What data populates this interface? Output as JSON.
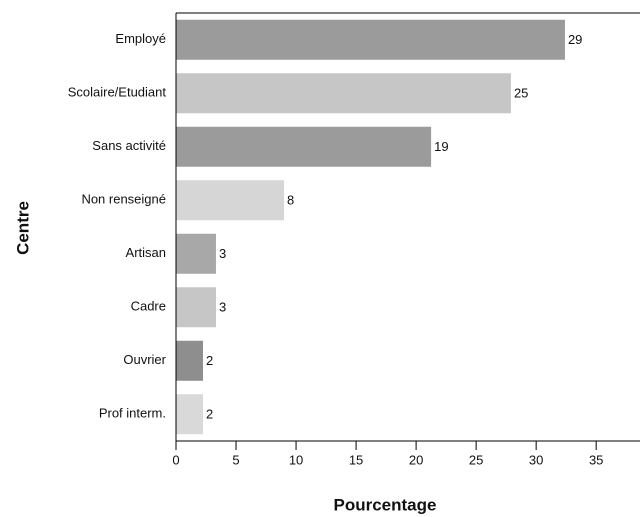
{
  "chart_data": {
    "type": "hbar",
    "y_label": "Centre",
    "x_label": "Pourcentage",
    "categories": [
      "Employé",
      "Scolaire/Etudiant",
      "Sans activité",
      "Non renseigné",
      "Artisan",
      "Cadre",
      "Ouvrier",
      "Prof interm."
    ],
    "values": [
      32.4,
      27.9,
      21.25,
      9.0,
      3.33,
      3.33,
      2.25,
      2.25
    ],
    "data_labels": [
      29,
      25,
      19,
      8,
      3,
      3,
      2,
      2
    ],
    "colors": [
      "#9b9b9b",
      "#c6c6c6",
      "#9b9b9b",
      "#d6d6d6",
      "#a8a8a8",
      "#c6c6c6",
      "#8e8e8e",
      "#d9d9d9"
    ],
    "xlim": [
      0,
      38.65
    ],
    "xticks": [
      0,
      5,
      10,
      15,
      20,
      25,
      30,
      35
    ]
  }
}
